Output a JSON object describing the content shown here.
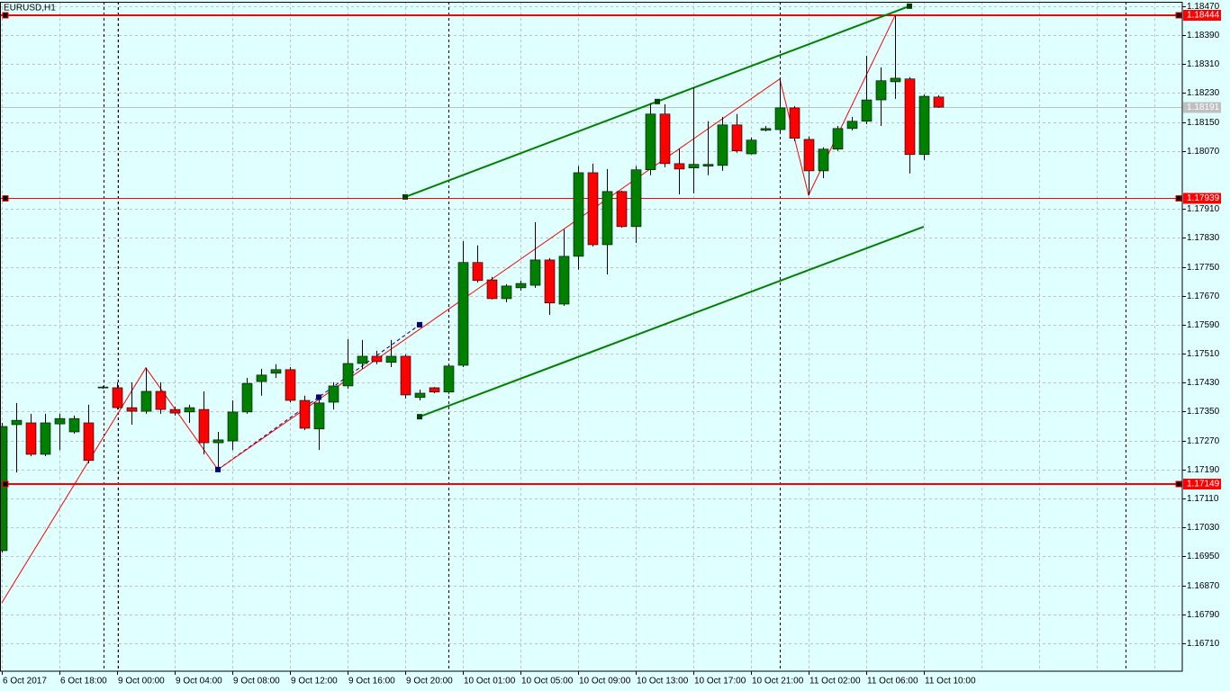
{
  "chart_data": {
    "type": "candlestick",
    "title": "EURUSD,H1",
    "categories": [
      "6 Oct 2017",
      null,
      null,
      null,
      "6 Oct 18:00",
      null,
      null,
      null,
      "9 Oct 00:00",
      null,
      null,
      null,
      "9 Oct 04:00",
      null,
      null,
      null,
      "9 Oct 08:00",
      null,
      null,
      null,
      "9 Oct 12:00",
      null,
      null,
      null,
      "9 Oct 16:00",
      null,
      null,
      null,
      "9 Oct 20:00",
      null,
      null,
      null,
      "10 Oct 01:00",
      null,
      null,
      null,
      "10 Oct 05:00",
      null,
      null,
      null,
      "10 Oct 09:00",
      null,
      null,
      null,
      "10 Oct 13:00",
      null,
      null,
      null,
      "10 Oct 17:00",
      null,
      null,
      null,
      "10 Oct 21:00",
      null,
      null,
      null,
      "11 Oct 02:00",
      null,
      null,
      null,
      "11 Oct 06:00",
      null,
      null,
      null,
      "11 Oct 10:00",
      null
    ],
    "open": [
      1.16966,
      1.17314,
      1.17319,
      1.17232,
      1.17316,
      1.17294,
      1.17319,
      1.17416,
      1.17416,
      1.17361,
      1.17351,
      1.17406,
      1.17356,
      1.17349,
      1.17356,
      1.17264,
      1.17269,
      1.17349,
      1.17433,
      1.17456,
      1.17466,
      1.17381,
      1.17302,
      1.17376,
      1.17421,
      1.17483,
      1.17503,
      1.17486,
      1.17503,
      1.17389,
      1.17416,
      1.17404,
      1.17478,
      1.17762,
      1.17714,
      1.17662,
      1.17692,
      1.17699,
      1.17769,
      1.17647,
      1.17779,
      1.1801,
      1.17811,
      1.17958,
      1.17861,
      1.18018,
      1.18172,
      1.18035,
      1.18023,
      1.18028,
      1.1803,
      1.18142,
      1.18062,
      1.18127,
      1.18129,
      1.18189,
      1.18102,
      1.18015,
      1.18075,
      1.18132,
      1.18152,
      1.18211,
      1.18261,
      1.18269,
      1.1806,
      1.18219
    ],
    "high": [
      1.17319,
      1.17374,
      1.17344,
      1.17344,
      1.17344,
      1.17339,
      1.17369,
      1.17421,
      1.17431,
      1.17431,
      1.17471,
      1.17431,
      1.17364,
      1.17369,
      1.17406,
      1.17294,
      1.17381,
      1.17443,
      1.17468,
      1.17481,
      1.17473,
      1.17394,
      1.17394,
      1.17431,
      1.1755,
      1.17548,
      1.17518,
      1.17548,
      1.17508,
      1.17411,
      1.17418,
      1.17481,
      1.17821,
      1.17809,
      1.17722,
      1.17702,
      1.17712,
      1.17873,
      1.17774,
      1.17853,
      1.18028,
      1.18035,
      1.1802,
      1.1796,
      1.18028,
      1.18202,
      1.18199,
      1.18077,
      1.18246,
      1.18152,
      1.18164,
      1.18172,
      1.18107,
      1.18139,
      1.18269,
      1.18194,
      1.1811,
      1.1808,
      1.18139,
      1.18164,
      1.18333,
      1.18301,
      1.18444,
      1.18274,
      1.18226,
      1.18224
    ],
    "low": [
      1.16961,
      1.17182,
      1.17227,
      1.17227,
      1.17244,
      1.17289,
      1.17207,
      1.17413,
      1.17356,
      1.17314,
      1.17344,
      1.17344,
      1.17339,
      1.17319,
      1.17232,
      1.1719,
      1.17244,
      1.17344,
      1.17394,
      1.17443,
      1.17376,
      1.17299,
      1.17244,
      1.17356,
      1.17413,
      1.17468,
      1.17481,
      1.17473,
      1.17386,
      1.17381,
      1.17401,
      1.17399,
      1.17473,
      1.17707,
      1.1766,
      1.17652,
      1.17684,
      1.17692,
      1.17617,
      1.17642,
      1.17742,
      1.17806,
      1.17729,
      1.17858,
      1.17816,
      1.18003,
      1.18025,
      1.1795,
      1.17953,
      1.18003,
      1.18015,
      1.18065,
      1.1806,
      1.18124,
      1.1812,
      1.18097,
      1.17948,
      1.17995,
      1.1807,
      1.18127,
      1.18144,
      1.18139,
      1.18214,
      1.18008,
      1.18045,
      1.18189
    ],
    "close": [
      1.17309,
      1.17326,
      1.17232,
      1.17319,
      1.17331,
      1.17331,
      1.17215,
      1.17418,
      1.17361,
      1.17351,
      1.17406,
      1.17356,
      1.17346,
      1.17361,
      1.17264,
      1.17272,
      1.17349,
      1.17428,
      1.17451,
      1.17466,
      1.17381,
      1.17304,
      1.17374,
      1.17421,
      1.17483,
      1.17503,
      1.17488,
      1.17503,
      1.17396,
      1.17401,
      1.17404,
      1.17476,
      1.17762,
      1.17712,
      1.17662,
      1.17697,
      1.17704,
      1.17769,
      1.1765,
      1.17779,
      1.1801,
      1.17811,
      1.17958,
      1.17861,
      1.18018,
      1.18172,
      1.18035,
      1.1802,
      1.18033,
      1.18033,
      1.18142,
      1.1807,
      1.181,
      1.18132,
      1.18189,
      1.18105,
      1.18015,
      1.18075,
      1.18132,
      1.18152,
      1.18211,
      1.18264,
      1.18271,
      1.1806,
      1.18221,
      1.18191
    ],
    "up_color": "#008000",
    "down_color": "#ff0000",
    "wick_color": "#000000",
    "ylim": [
      1.16633,
      1.18482
    ],
    "yticks": [
      {
        "value": 1.1847,
        "label": "1.18470"
      },
      {
        "value": 1.1839,
        "label": "1.18390"
      },
      {
        "value": 1.1831,
        "label": "1.18310"
      },
      {
        "value": 1.1823,
        "label": "1.18230"
      },
      {
        "value": 1.1815,
        "label": "1.18150"
      },
      {
        "value": 1.1807,
        "label": "1.18070"
      },
      {
        "value": 1.1791,
        "label": "1.17910"
      },
      {
        "value": 1.1783,
        "label": "1.17830"
      },
      {
        "value": 1.1775,
        "label": "1.17750"
      },
      {
        "value": 1.1767,
        "label": "1.17670"
      },
      {
        "value": 1.1759,
        "label": "1.17590"
      },
      {
        "value": 1.1751,
        "label": "1.17510"
      },
      {
        "value": 1.1743,
        "label": "1.17430"
      },
      {
        "value": 1.1735,
        "label": "1.17350"
      },
      {
        "value": 1.1727,
        "label": "1.17270"
      },
      {
        "value": 1.1719,
        "label": "1.17190"
      },
      {
        "value": 1.1711,
        "label": "1.17110"
      },
      {
        "value": 1.1703,
        "label": "1.17030"
      },
      {
        "value": 1.1695,
        "label": "1.16950"
      },
      {
        "value": 1.1687,
        "label": "1.16870"
      },
      {
        "value": 1.1679,
        "label": "1.16790"
      },
      {
        "value": 1.1671,
        "label": "1.16710"
      }
    ],
    "grid": true,
    "current_price": 1.18191,
    "current_price_color": "#c0c0c0",
    "levels": [
      {
        "value": 1.18444,
        "color": "#ff0000",
        "width": 2
      },
      {
        "value": 1.17939,
        "color": "#ff0000",
        "width": 1
      },
      {
        "value": 1.17149,
        "color": "#ff0000",
        "width": 2
      }
    ],
    "trendlines": [
      {
        "color": "#008000",
        "width": 2,
        "dash": false,
        "selected": true,
        "points": [
          {
            "x": 28,
            "y": 1.17943
          },
          {
            "x": 63,
            "y": 1.1847
          }
        ]
      },
      {
        "color": "#008000",
        "width": 2,
        "dash": false,
        "selected": false,
        "points": [
          {
            "x": 29,
            "y": 1.17336
          },
          {
            "x": 64,
            "y": 1.17861
          }
        ]
      },
      {
        "color": "#000080",
        "width": 1,
        "dash": true,
        "selected": true,
        "points": [
          {
            "x": 15,
            "y": 1.1719
          },
          {
            "x": 29,
            "y": 1.1759
          }
        ]
      }
    ],
    "zigzag": {
      "color": "#ff0000",
      "points": [
        {
          "x": 0,
          "y": 1.16822
        },
        {
          "x": 10,
          "y": 1.17471
        },
        {
          "x": 15,
          "y": 1.1719
        },
        {
          "x": 54,
          "y": 1.18269
        },
        {
          "x": 56,
          "y": 1.17948
        },
        {
          "x": 62,
          "y": 1.18444
        }
      ]
    }
  }
}
